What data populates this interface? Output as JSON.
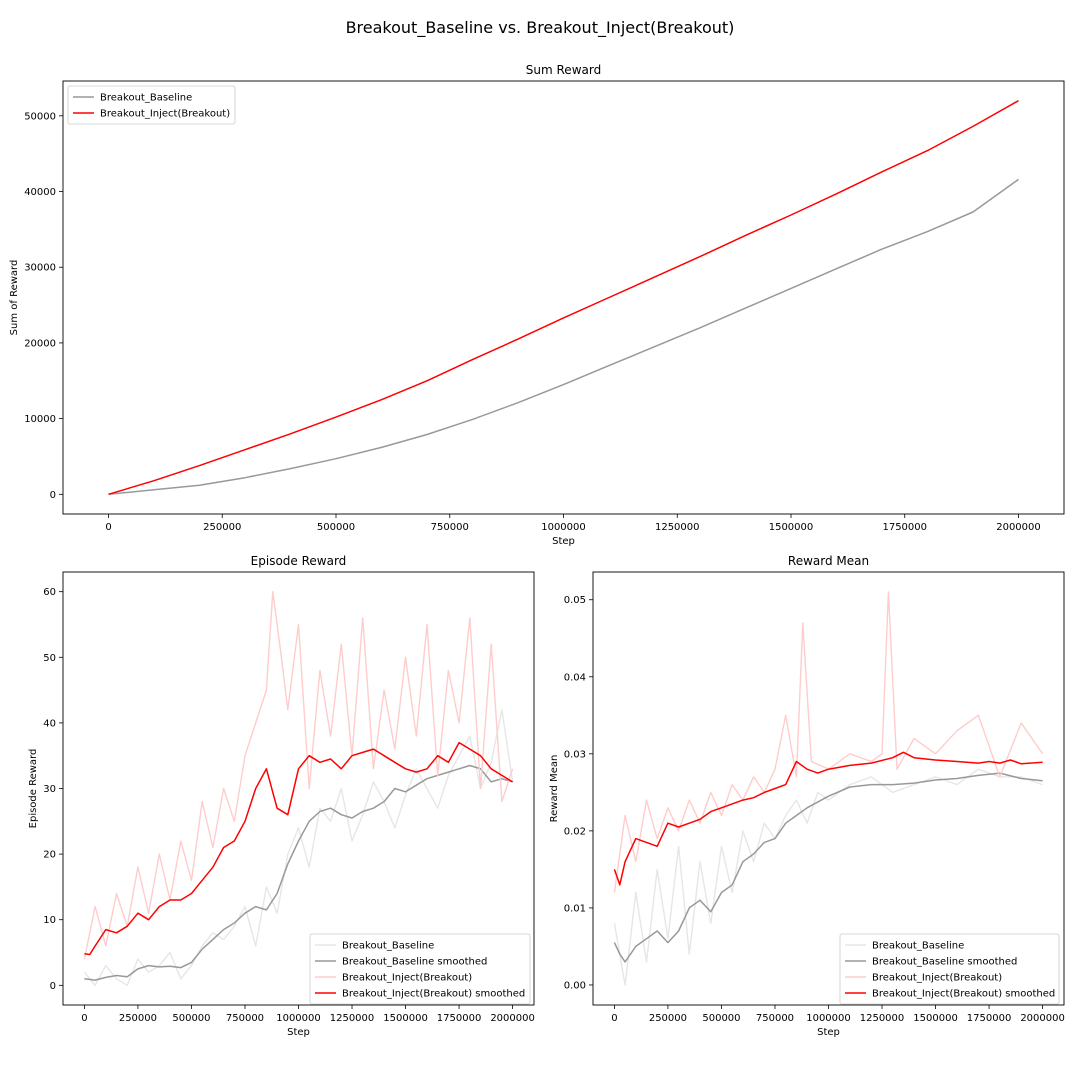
{
  "figure": {
    "suptitle": "Breakout_Baseline vs. Breakout_Inject(Breakout)"
  },
  "colors": {
    "baseline_raw": "#e6e6e6",
    "baseline_smoothed": "#999999",
    "inject_raw": "#ffcccc",
    "inject_smoothed": "#ff0000"
  },
  "chart_data": [
    {
      "type": "line",
      "title": "Sum Reward",
      "xlabel": "Step",
      "ylabel": "Sum of Reward",
      "xlim": [
        -100000,
        2100000
      ],
      "ylim": [
        -2600,
        54600
      ],
      "xticks": [
        0,
        250000,
        500000,
        750000,
        1000000,
        1250000,
        1500000,
        1750000,
        2000000
      ],
      "yticks": [
        0,
        10000,
        20000,
        30000,
        40000,
        50000
      ],
      "legend": "top-left",
      "series": [
        {
          "name": "Breakout_Baseline",
          "color": "#999999",
          "x": [
            0,
            100000,
            200000,
            300000,
            400000,
            500000,
            600000,
            700000,
            800000,
            900000,
            1000000,
            1100000,
            1200000,
            1300000,
            1400000,
            1500000,
            1600000,
            1700000,
            1800000,
            1900000,
            2000000
          ],
          "y": [
            0,
            600,
            1200,
            2200,
            3400,
            4700,
            6200,
            7900,
            9900,
            12100,
            14500,
            17000,
            19500,
            22000,
            24600,
            27200,
            29800,
            32400,
            34700,
            37300,
            41600
          ]
        },
        {
          "name": "Breakout_Inject(Breakout)",
          "color": "#ff0000",
          "x": [
            0,
            100000,
            200000,
            300000,
            400000,
            500000,
            600000,
            700000,
            800000,
            900000,
            1000000,
            1100000,
            1200000,
            1300000,
            1400000,
            1500000,
            1600000,
            1700000,
            1800000,
            1900000,
            2000000
          ],
          "y": [
            0,
            1800,
            3800,
            5900,
            8000,
            10200,
            12500,
            15000,
            17800,
            20500,
            23300,
            26000,
            28700,
            31400,
            34200,
            36900,
            39700,
            42600,
            45400,
            48600,
            52000
          ]
        }
      ]
    },
    {
      "type": "line",
      "title": "Episode Reward",
      "xlabel": "Step",
      "ylabel": "Episode Reward",
      "xlim": [
        -100000,
        2100000
      ],
      "ylim": [
        -3,
        63
      ],
      "xticks": [
        0,
        250000,
        500000,
        750000,
        1000000,
        1250000,
        1500000,
        1750000,
        2000000
      ],
      "yticks": [
        0,
        10,
        20,
        30,
        40,
        50,
        60
      ],
      "legend": "bottom-right",
      "series": [
        {
          "name": "Breakout_Baseline",
          "color": "#e6e6e6",
          "x": [
            0,
            50000,
            100000,
            150000,
            200000,
            250000,
            300000,
            350000,
            400000,
            450000,
            500000,
            550000,
            600000,
            650000,
            700000,
            750000,
            800000,
            850000,
            900000,
            950000,
            1000000,
            1050000,
            1100000,
            1150000,
            1200000,
            1250000,
            1300000,
            1350000,
            1400000,
            1450000,
            1500000,
            1550000,
            1600000,
            1650000,
            1700000,
            1750000,
            1800000,
            1850000,
            1900000,
            1950000,
            2000000
          ],
          "y": [
            2,
            0,
            3,
            1,
            0,
            4,
            2,
            3,
            5,
            1,
            3,
            6,
            8,
            7,
            9,
            12,
            6,
            15,
            11,
            20,
            24,
            18,
            27,
            25,
            30,
            22,
            26,
            31,
            28,
            24,
            29,
            33,
            30,
            27,
            32,
            35,
            38,
            30,
            34,
            42,
            31
          ]
        },
        {
          "name": "Breakout_Baseline smoothed",
          "color": "#999999",
          "x": [
            0,
            50000,
            100000,
            150000,
            200000,
            250000,
            300000,
            350000,
            400000,
            450000,
            500000,
            550000,
            600000,
            650000,
            700000,
            750000,
            800000,
            850000,
            900000,
            950000,
            1000000,
            1050000,
            1100000,
            1150000,
            1200000,
            1250000,
            1300000,
            1350000,
            1400000,
            1450000,
            1500000,
            1550000,
            1600000,
            1650000,
            1700000,
            1750000,
            1800000,
            1850000,
            1900000,
            1950000,
            2000000
          ],
          "y": [
            1,
            0.8,
            1.2,
            1.5,
            1.3,
            2.5,
            3,
            2.8,
            2.9,
            2.7,
            3.5,
            5.5,
            7,
            8.5,
            9.5,
            11,
            12,
            11.5,
            14,
            18.5,
            22,
            25,
            26.5,
            27,
            26,
            25.5,
            26.5,
            27,
            28,
            30,
            29.5,
            30.5,
            31.5,
            32,
            32.5,
            33,
            33.5,
            33,
            31,
            31.5,
            31
          ]
        },
        {
          "name": "Breakout_Inject(Breakout)",
          "color": "#ffcccc",
          "x": [
            0,
            50000,
            100000,
            150000,
            200000,
            250000,
            300000,
            350000,
            400000,
            450000,
            500000,
            550000,
            600000,
            650000,
            700000,
            750000,
            800000,
            850000,
            880000,
            920000,
            950000,
            1000000,
            1050000,
            1100000,
            1150000,
            1200000,
            1250000,
            1300000,
            1350000,
            1400000,
            1450000,
            1500000,
            1550000,
            1600000,
            1650000,
            1700000,
            1750000,
            1800000,
            1850000,
            1900000,
            1950000,
            2000000
          ],
          "y": [
            4,
            12,
            6,
            14,
            9,
            18,
            11,
            20,
            13,
            22,
            16,
            28,
            21,
            30,
            25,
            35,
            40,
            45,
            60,
            50,
            42,
            55,
            30,
            48,
            38,
            52,
            35,
            56,
            33,
            45,
            36,
            50,
            38,
            55,
            32,
            48,
            40,
            56,
            30,
            52,
            28,
            33
          ]
        },
        {
          "name": "Breakout_Inject(Breakout) smoothed",
          "color": "#ff0000",
          "x": [
            0,
            25000,
            50000,
            100000,
            150000,
            200000,
            250000,
            300000,
            350000,
            400000,
            450000,
            500000,
            550000,
            600000,
            650000,
            700000,
            750000,
            800000,
            850000,
            900000,
            950000,
            1000000,
            1050000,
            1100000,
            1150000,
            1200000,
            1250000,
            1300000,
            1350000,
            1400000,
            1450000,
            1500000,
            1550000,
            1600000,
            1650000,
            1700000,
            1750000,
            1800000,
            1850000,
            1900000,
            1950000,
            2000000
          ],
          "y": [
            4.8,
            4.7,
            6,
            8.5,
            8,
            9,
            11,
            10,
            12,
            13,
            13,
            14,
            16,
            18,
            21,
            22,
            25,
            30,
            33,
            27,
            26,
            33,
            35,
            34,
            34.5,
            33,
            35,
            35.5,
            36,
            35,
            34,
            33,
            32.5,
            33,
            35,
            34,
            37,
            36,
            35,
            33,
            32,
            31
          ]
        }
      ]
    },
    {
      "type": "line",
      "title": "Reward Mean",
      "xlabel": "Step",
      "ylabel": "Reward Mean",
      "xlim": [
        -100000,
        2100000
      ],
      "ylim": [
        -0.0026,
        0.0536
      ],
      "xticks": [
        0,
        250000,
        500000,
        750000,
        1000000,
        1250000,
        1500000,
        1750000,
        2000000
      ],
      "yticks": [
        0.0,
        0.01,
        0.02,
        0.03,
        0.04,
        0.05
      ],
      "legend": "bottom-right",
      "series": [
        {
          "name": "Breakout_Baseline",
          "color": "#e6e6e6",
          "x": [
            0,
            50000,
            100000,
            150000,
            200000,
            250000,
            300000,
            350000,
            400000,
            450000,
            500000,
            550000,
            600000,
            650000,
            700000,
            750000,
            800000,
            850000,
            900000,
            950000,
            1000000,
            1100000,
            1200000,
            1300000,
            1400000,
            1500000,
            1600000,
            1700000,
            1800000,
            1900000,
            2000000
          ],
          "y": [
            0.008,
            0.0,
            0.012,
            0.003,
            0.015,
            0.006,
            0.018,
            0.004,
            0.016,
            0.008,
            0.018,
            0.012,
            0.02,
            0.016,
            0.021,
            0.019,
            0.022,
            0.024,
            0.021,
            0.025,
            0.024,
            0.026,
            0.027,
            0.025,
            0.026,
            0.027,
            0.026,
            0.028,
            0.027,
            0.027,
            0.026
          ]
        },
        {
          "name": "Breakout_Baseline smoothed",
          "color": "#999999",
          "x": [
            0,
            25000,
            50000,
            100000,
            150000,
            200000,
            250000,
            300000,
            350000,
            400000,
            450000,
            500000,
            550000,
            600000,
            650000,
            700000,
            750000,
            800000,
            850000,
            900000,
            1000000,
            1100000,
            1200000,
            1300000,
            1400000,
            1500000,
            1600000,
            1700000,
            1800000,
            1900000,
            2000000
          ],
          "y": [
            0.0055,
            0.004,
            0.003,
            0.005,
            0.006,
            0.007,
            0.0055,
            0.007,
            0.01,
            0.011,
            0.0095,
            0.012,
            0.013,
            0.016,
            0.017,
            0.0185,
            0.019,
            0.021,
            0.022,
            0.023,
            0.0245,
            0.0257,
            0.026,
            0.026,
            0.0262,
            0.0266,
            0.0268,
            0.0272,
            0.0275,
            0.0268,
            0.0265
          ]
        },
        {
          "name": "Breakout_Inject(Breakout)",
          "color": "#ffcccc",
          "x": [
            0,
            50000,
            100000,
            150000,
            200000,
            250000,
            300000,
            350000,
            400000,
            450000,
            500000,
            550000,
            600000,
            650000,
            700000,
            750000,
            800000,
            850000,
            880000,
            920000,
            1000000,
            1100000,
            1200000,
            1250000,
            1280000,
            1320000,
            1400000,
            1500000,
            1600000,
            1700000,
            1800000,
            1900000,
            2000000
          ],
          "y": [
            0.012,
            0.022,
            0.016,
            0.024,
            0.019,
            0.023,
            0.02,
            0.024,
            0.021,
            0.025,
            0.022,
            0.026,
            0.024,
            0.027,
            0.025,
            0.028,
            0.035,
            0.027,
            0.047,
            0.029,
            0.028,
            0.03,
            0.029,
            0.03,
            0.051,
            0.028,
            0.032,
            0.03,
            0.033,
            0.035,
            0.027,
            0.034,
            0.03
          ]
        },
        {
          "name": "Breakout_Inject(Breakout) smoothed",
          "color": "#ff0000",
          "x": [
            0,
            25000,
            50000,
            100000,
            150000,
            200000,
            250000,
            300000,
            350000,
            400000,
            450000,
            500000,
            550000,
            600000,
            650000,
            700000,
            750000,
            800000,
            850000,
            900000,
            950000,
            1000000,
            1100000,
            1200000,
            1300000,
            1350000,
            1400000,
            1500000,
            1600000,
            1700000,
            1750000,
            1800000,
            1850000,
            1900000,
            2000000
          ],
          "y": [
            0.015,
            0.013,
            0.016,
            0.019,
            0.0185,
            0.018,
            0.021,
            0.0205,
            0.021,
            0.0215,
            0.0225,
            0.023,
            0.0235,
            0.024,
            0.0243,
            0.025,
            0.0255,
            0.026,
            0.029,
            0.028,
            0.0275,
            0.028,
            0.0285,
            0.0288,
            0.0295,
            0.0302,
            0.0295,
            0.0292,
            0.029,
            0.0288,
            0.029,
            0.0288,
            0.0292,
            0.0287,
            0.0289
          ]
        }
      ]
    }
  ]
}
